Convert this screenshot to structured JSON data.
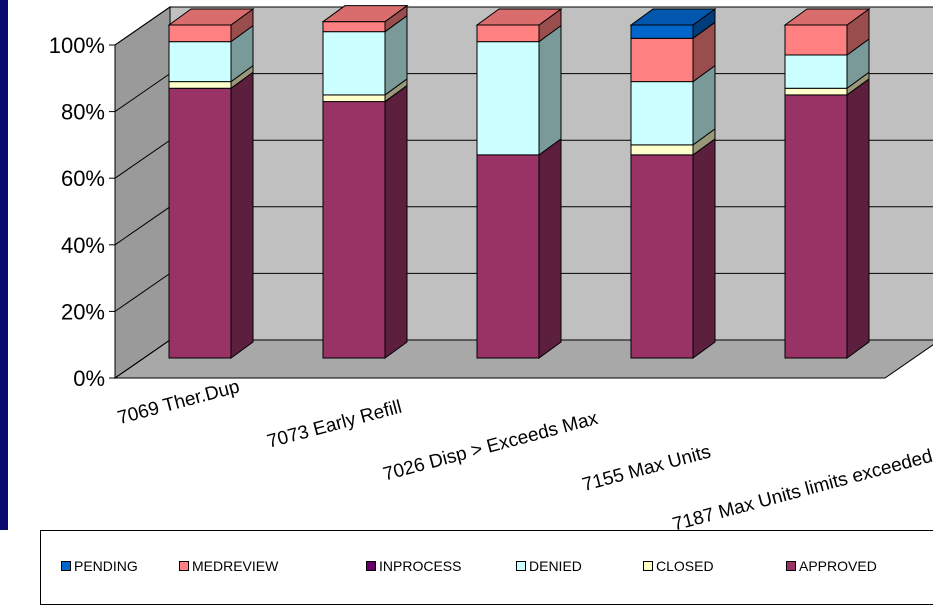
{
  "chart_data": {
    "type": "bar",
    "stacked": true,
    "percent": true,
    "three_d": true,
    "title": "",
    "xlabel": "",
    "ylabel": "",
    "ylim": [
      0,
      100
    ],
    "yticks": [
      "0%",
      "20%",
      "40%",
      "60%",
      "80%",
      "100%"
    ],
    "categories": [
      "7069 Ther.Dup",
      "7073 Early Refill",
      "7026 Disp > Exceeds Max",
      "7155 Max Units",
      "7187 Max Units limits exceeded"
    ],
    "series": [
      {
        "name": "APPROVED",
        "color": "#993366",
        "values": [
          81,
          77,
          61,
          61,
          79
        ]
      },
      {
        "name": "CLOSED",
        "color": "#ffffcc",
        "values": [
          2,
          2,
          0,
          3,
          2
        ]
      },
      {
        "name": "DENIED",
        "color": "#ccffff",
        "values": [
          12,
          19,
          34,
          19,
          10
        ]
      },
      {
        "name": "INPROCESS",
        "color": "#660066",
        "values": [
          0,
          0,
          0,
          0,
          0
        ]
      },
      {
        "name": "MEDREVIEW",
        "color": "#ff8080",
        "values": [
          5,
          3,
          5,
          13,
          9
        ]
      },
      {
        "name": "PENDING",
        "color": "#0066cc",
        "values": [
          0,
          0,
          0,
          4,
          0
        ]
      }
    ],
    "legend": {
      "position": "bottom",
      "order": [
        "PENDING",
        "MEDREVIEW",
        "INPROCESS",
        "DENIED",
        "CLOSED",
        "APPROVED"
      ]
    },
    "grid": true
  },
  "colors": {
    "frame": "#0a0a6e",
    "wall": "#c0c0c0",
    "wall_dark": "#808080"
  }
}
